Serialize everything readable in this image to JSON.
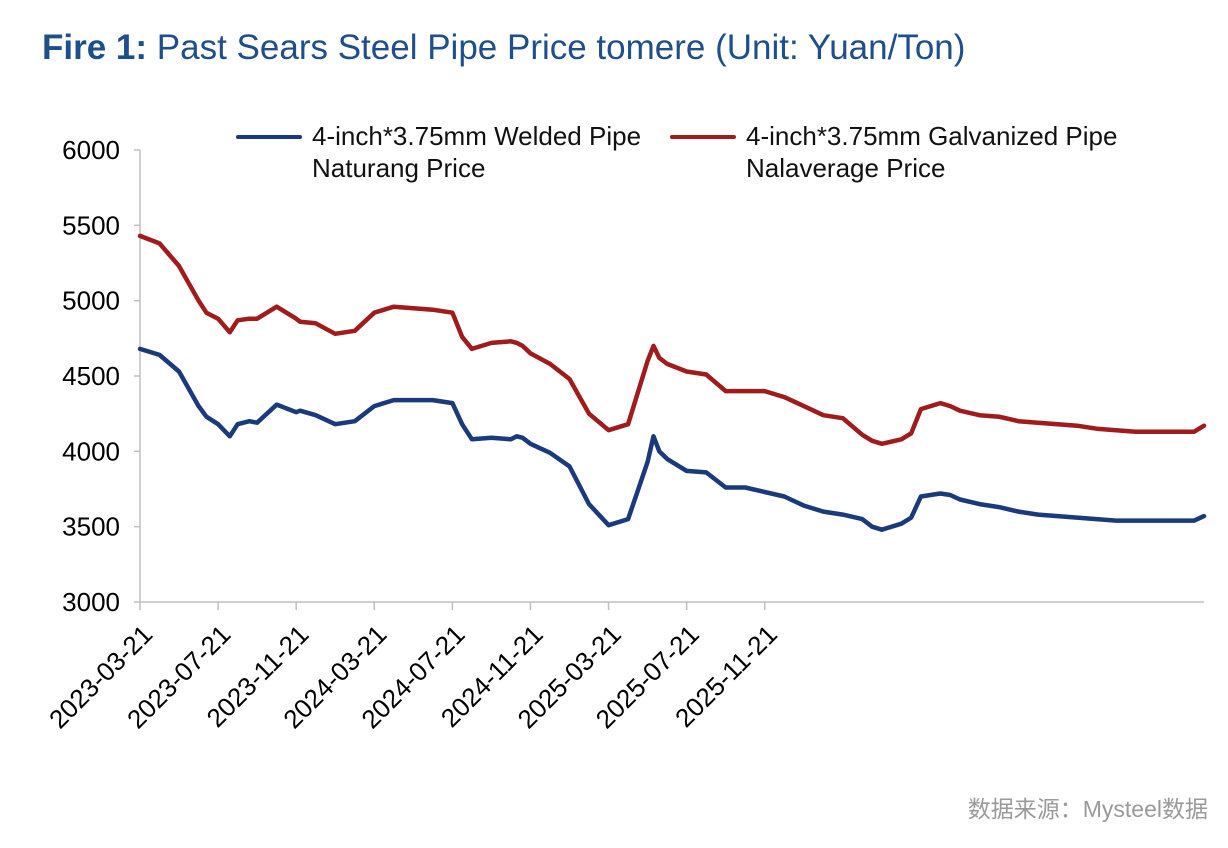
{
  "title": {
    "prefix": "Fire 1:",
    "text": "Past Sears Steel Pipe Price tomere (Unit: Yuan/Ton)"
  },
  "source": "数据来源：Mysteel数据",
  "colors": {
    "title": "#1f4e8c",
    "welded": "#1a3a7c",
    "galvanized": "#a01c1c"
  },
  "chart_data": {
    "type": "line",
    "title": "Past Sears Steel Pipe Price tomere (Unit: Yuan/Ton)",
    "ylim": [
      3000,
      6000
    ],
    "yticks": [
      3000,
      3500,
      4000,
      4500,
      5000,
      5500,
      6000
    ],
    "xticks": [
      "2023-03-21",
      "2023-07-21",
      "2023-11-21",
      "2024-03-21",
      "2024-07-21",
      "2024-11-21",
      "2025-03-21",
      "2025-07-21",
      "2025-11-21"
    ],
    "x_months": [
      0,
      1,
      2,
      3,
      3.4,
      4,
      4.6,
      5,
      5.6,
      6,
      7,
      8,
      8.2,
      9,
      10,
      11,
      12,
      13,
      14,
      15,
      16,
      16.5,
      17,
      18,
      19,
      19.3,
      19.6,
      20,
      21,
      22,
      23,
      24,
      25,
      26,
      26.3,
      26.6,
      27,
      28,
      29,
      30,
      31,
      32,
      33,
      34,
      35,
      36
    ],
    "series": [
      {
        "name": "4-inch*3.75mm Welded Pipe Naturang Price",
        "legend_line1": "4-inch*3.75mm Welded Pipe",
        "legend_line2": "Naturang Price",
        "values": [
          4680,
          4640,
          4530,
          4300,
          4230,
          4180,
          4100,
          4180,
          4200,
          4190,
          4310,
          4260,
          4270,
          4240,
          4180,
          4200,
          4300,
          4340,
          4340,
          4340,
          4320,
          4180,
          4080,
          4090,
          4080,
          4100,
          4090,
          4050,
          3990,
          3900,
          3650,
          3510,
          3550,
          3930,
          4100,
          4000,
          3950,
          3870,
          3860,
          3760,
          3760,
          3730,
          3700,
          3640,
          3600,
          3580
        ]
      },
      {
        "name": "4-inch*3.75mm Galvanized Pipe Nalaverage Price",
        "legend_line1": "4-inch*3.75mm Galvanized Pipe",
        "legend_line2": "Nalaverage Price",
        "values": [
          5430,
          5380,
          5230,
          5000,
          4920,
          4880,
          4790,
          4870,
          4880,
          4880,
          4960,
          4880,
          4860,
          4850,
          4780,
          4800,
          4920,
          4960,
          4950,
          4940,
          4920,
          4760,
          4680,
          4720,
          4730,
          4720,
          4700,
          4650,
          4580,
          4480,
          4250,
          4140,
          4180,
          4600,
          4700,
          4620,
          4580,
          4530,
          4510,
          4400,
          4400,
          4400,
          4360,
          4300,
          4240,
          4220
        ]
      }
    ]
  },
  "chart_data_tail": {
    "x_months": [
      37,
      37.5,
      38,
      39,
      39.5,
      40,
      41,
      41.5,
      42,
      43,
      44,
      45,
      46,
      47,
      48,
      49,
      50,
      51,
      52,
      53,
      54,
      54.5
    ],
    "welded": [
      3550,
      3500,
      3480,
      3520,
      3560,
      3700,
      3720,
      3710,
      3680,
      3650,
      3630,
      3600,
      3580,
      3570,
      3560,
      3550,
      3540,
      3540,
      3540,
      3540,
      3540,
      3570
    ],
    "galvanized": [
      4110,
      4070,
      4050,
      4080,
      4120,
      4280,
      4320,
      4300,
      4270,
      4240,
      4230,
      4200,
      4190,
      4180,
      4170,
      4150,
      4140,
      4130,
      4130,
      4130,
      4130,
      4170
    ]
  }
}
